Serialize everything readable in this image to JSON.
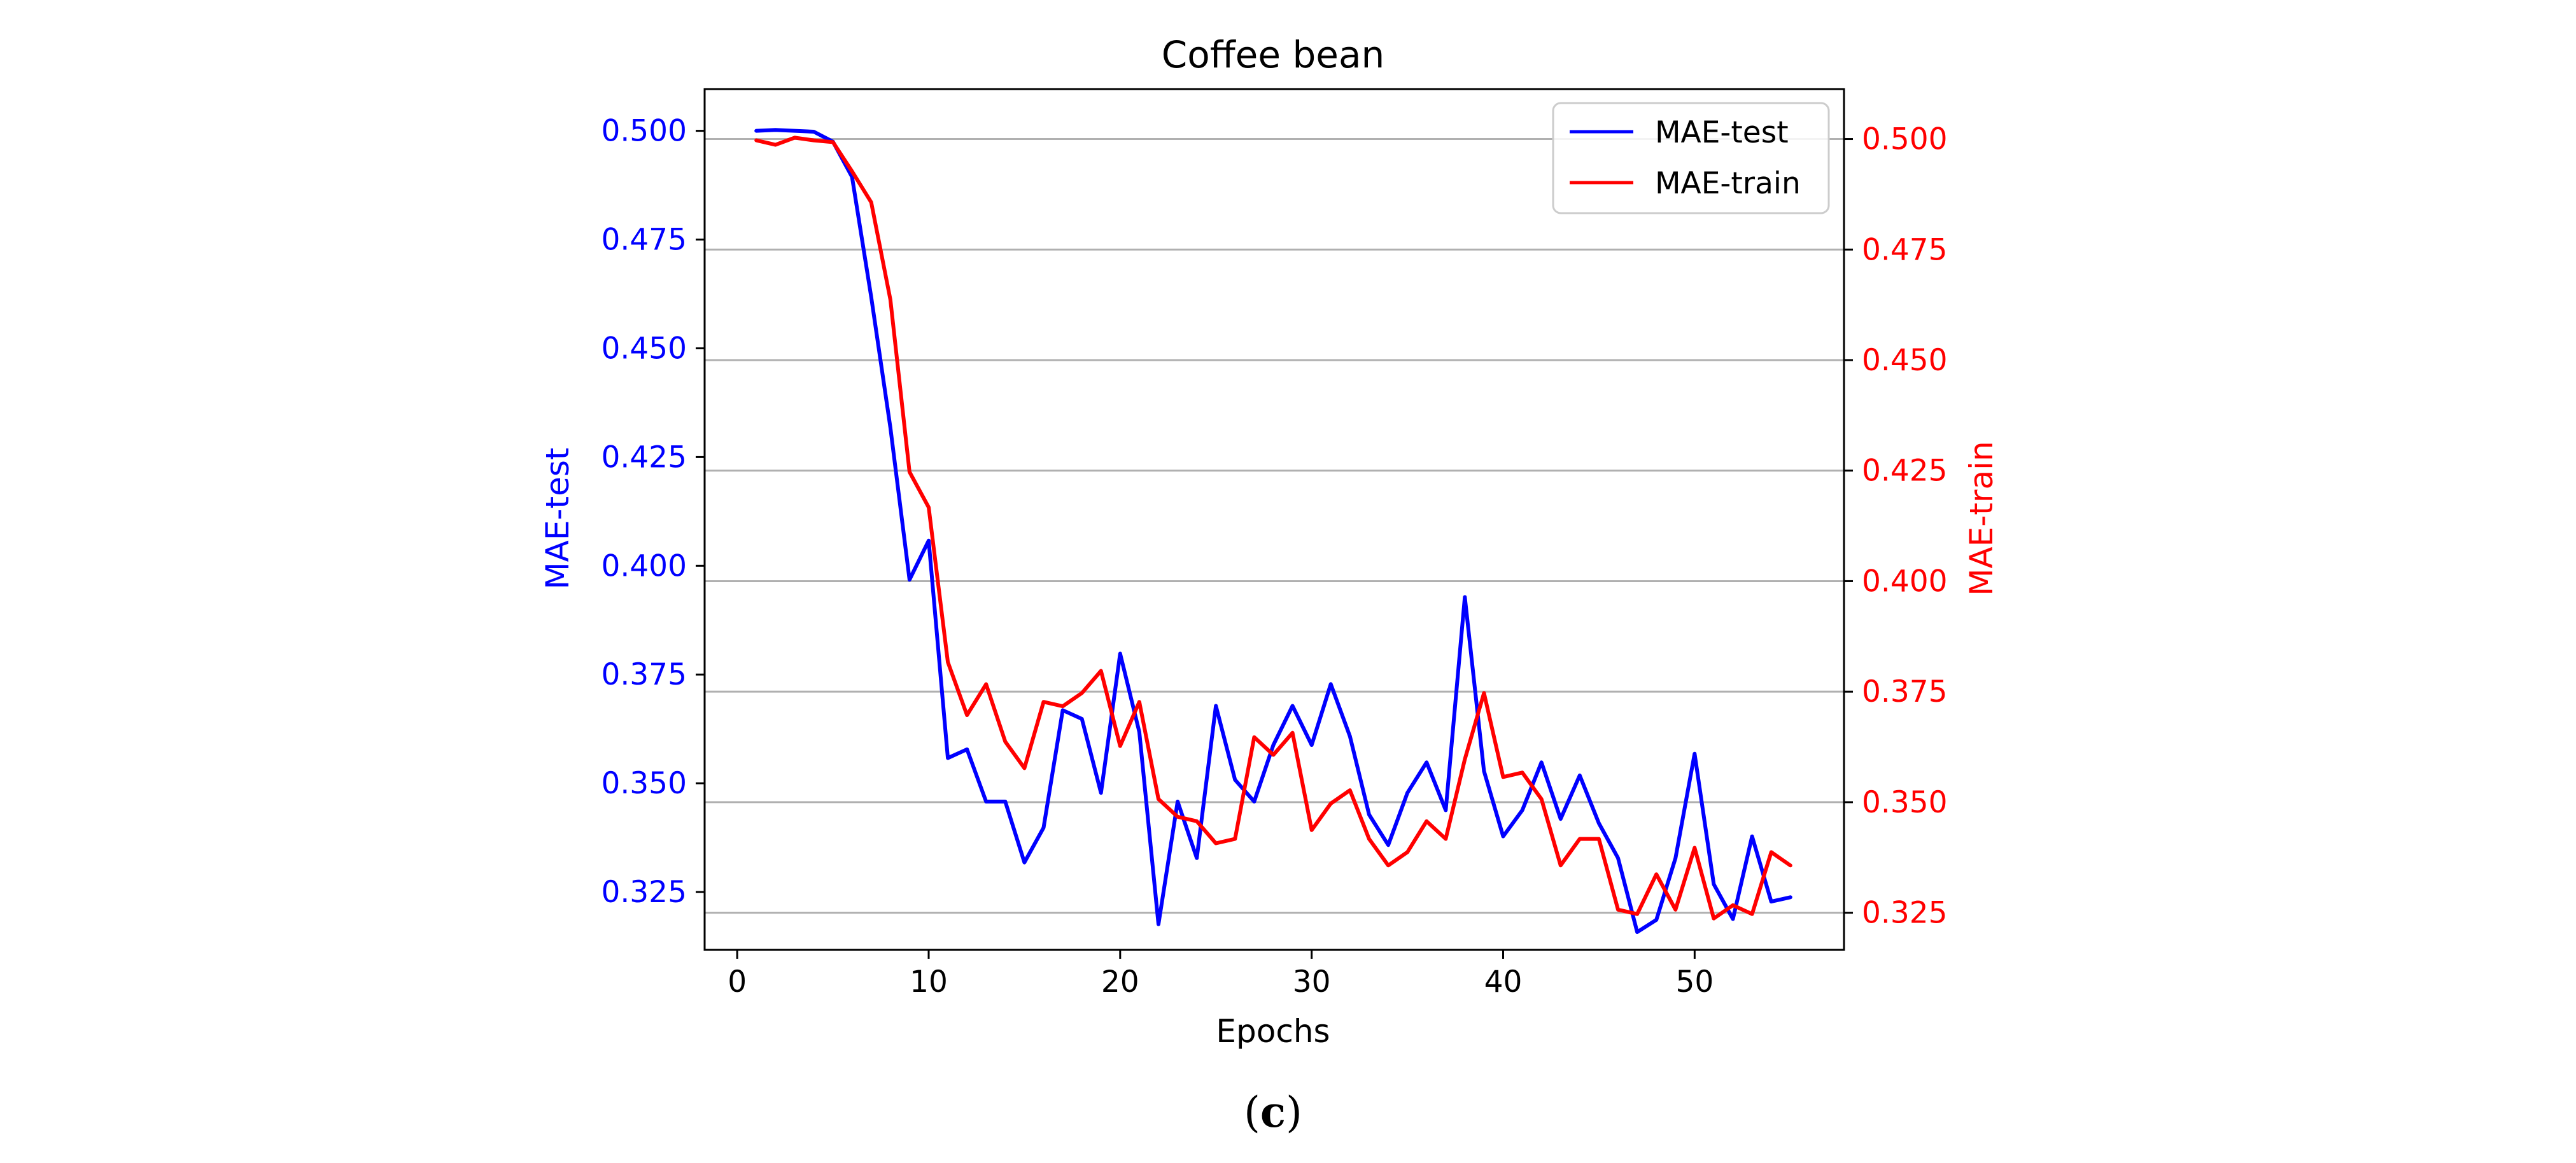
{
  "chart_data": {
    "type": "line",
    "title": "Coffee bean",
    "xlabel": "Epochs",
    "ylabel_left": "MAE-test",
    "ylabel_right": "MAE-train",
    "xlim": [
      -1.7,
      57.8
    ],
    "ylim_left": [
      0.3117,
      0.5096
    ],
    "ylim_right": [
      0.3166,
      0.5113
    ],
    "x_ticks": [
      "0",
      "10",
      "20",
      "30",
      "40",
      "50"
    ],
    "y_ticks_left": [
      "0.500",
      "0.475",
      "0.450",
      "0.425",
      "0.400",
      "0.375",
      "0.350",
      "0.325"
    ],
    "y_ticks_right": [
      "0.500",
      "0.475",
      "0.450",
      "0.425",
      "0.400",
      "0.375",
      "0.350",
      "0.325"
    ],
    "grid": "horizontal",
    "legend_position": "top-right",
    "colors": {
      "left_axis": "#0000ff",
      "right_axis": "#ff0000",
      "grid": "#b0b0b0"
    },
    "x": [
      1,
      2,
      3,
      4,
      5,
      6,
      7,
      8,
      9,
      10,
      11,
      12,
      13,
      14,
      15,
      16,
      17,
      18,
      19,
      20,
      21,
      22,
      23,
      24,
      25,
      26,
      27,
      28,
      29,
      30,
      31,
      32,
      33,
      34,
      35,
      36,
      37,
      38,
      39,
      40,
      41,
      42,
      43,
      44,
      45,
      46,
      47,
      48,
      49,
      50,
      51,
      52,
      53,
      54,
      55
    ],
    "series": [
      {
        "name": "MAE-test",
        "axis": "left",
        "color": "#0000ff",
        "values": [
          0.5,
          0.5002,
          0.5,
          0.4998,
          0.4975,
          0.4894,
          0.4618,
          0.4318,
          0.3968,
          0.4058,
          0.3558,
          0.3578,
          0.3458,
          0.3458,
          0.3318,
          0.3398,
          0.3668,
          0.3648,
          0.3478,
          0.3798,
          0.3618,
          0.3176,
          0.3458,
          0.3328,
          0.3678,
          0.3508,
          0.3458,
          0.3588,
          0.3678,
          0.3588,
          0.3728,
          0.3608,
          0.3428,
          0.3358,
          0.3478,
          0.3548,
          0.3438,
          0.3928,
          0.3528,
          0.3378,
          0.3438,
          0.3548,
          0.3418,
          0.3518,
          0.3408,
          0.3328,
          0.3158,
          0.3186,
          0.3328,
          0.3568,
          0.3268,
          0.3188,
          0.3378,
          0.3228,
          0.3238
        ]
      },
      {
        "name": "MAE-train",
        "axis": "right",
        "color": "#ff0000",
        "values": [
          0.4997,
          0.4987,
          0.5003,
          0.4997,
          0.4993,
          0.4927,
          0.4857,
          0.4637,
          0.4247,
          0.4167,
          0.3817,
          0.3697,
          0.3767,
          0.3637,
          0.3577,
          0.3727,
          0.3717,
          0.3747,
          0.3797,
          0.3627,
          0.3727,
          0.3507,
          0.3467,
          0.3457,
          0.3407,
          0.3417,
          0.3647,
          0.3607,
          0.3657,
          0.3437,
          0.3497,
          0.3527,
          0.3417,
          0.3357,
          0.3387,
          0.3457,
          0.3417,
          0.3597,
          0.3747,
          0.3557,
          0.3567,
          0.3507,
          0.3357,
          0.3417,
          0.3417,
          0.3257,
          0.3247,
          0.3337,
          0.3257,
          0.3397,
          0.3237,
          0.3267,
          0.3247,
          0.3387,
          0.3357
        ]
      }
    ]
  },
  "caption": {
    "open": "(",
    "label": "c",
    "close": ")"
  }
}
